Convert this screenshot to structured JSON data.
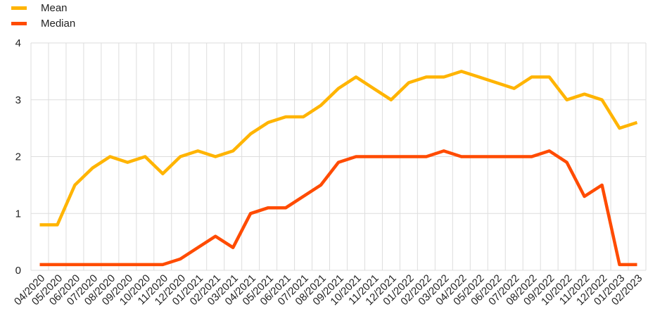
{
  "chart_data": {
    "type": "line",
    "title": "",
    "xlabel": "",
    "ylabel": "",
    "ylim": [
      0,
      4
    ],
    "yticks": [
      "0",
      "1",
      "2",
      "3",
      "4"
    ],
    "grid": true,
    "legend_position": "top-left",
    "categories": [
      "04/2020",
      "05/2020",
      "06/2020",
      "07/2020",
      "08/2020",
      "09/2020",
      "10/2020",
      "11/2020",
      "12/2020",
      "01/2021",
      "02/2021",
      "03/2021",
      "04/2021",
      "05/2021",
      "06/2021",
      "07/2021",
      "08/2021",
      "09/2021",
      "10/2021",
      "11/2021",
      "12/2021",
      "01/2022",
      "02/2022",
      "03/2022",
      "04/2022",
      "05/2022",
      "06/2022",
      "07/2022",
      "08/2022",
      "09/2022",
      "10/2022",
      "11/2022",
      "12/2022",
      "01/2023",
      "02/2023"
    ],
    "series": [
      {
        "name": "Mean",
        "color": "#FFB400",
        "values": [
          0.8,
          0.8,
          1.5,
          1.8,
          2.0,
          1.9,
          2.0,
          1.7,
          2.0,
          2.1,
          2.0,
          2.1,
          2.4,
          2.6,
          2.7,
          2.7,
          2.9,
          3.2,
          3.4,
          3.2,
          3.0,
          3.3,
          3.4,
          3.4,
          3.5,
          3.4,
          3.3,
          3.2,
          3.4,
          3.4,
          3.0,
          3.1,
          3.0,
          2.5,
          2.6
        ]
      },
      {
        "name": "Median",
        "color": "#FF4B00",
        "values": [
          0.1,
          0.1,
          0.1,
          0.1,
          0.1,
          0.1,
          0.1,
          0.1,
          0.2,
          0.4,
          0.6,
          0.4,
          1.0,
          1.1,
          1.1,
          1.3,
          1.5,
          1.9,
          2.0,
          2.0,
          2.0,
          2.0,
          2.0,
          2.1,
          2.0,
          2.0,
          2.0,
          2.0,
          2.0,
          2.1,
          1.9,
          1.3,
          1.5,
          0.1,
          0.1
        ]
      }
    ]
  }
}
